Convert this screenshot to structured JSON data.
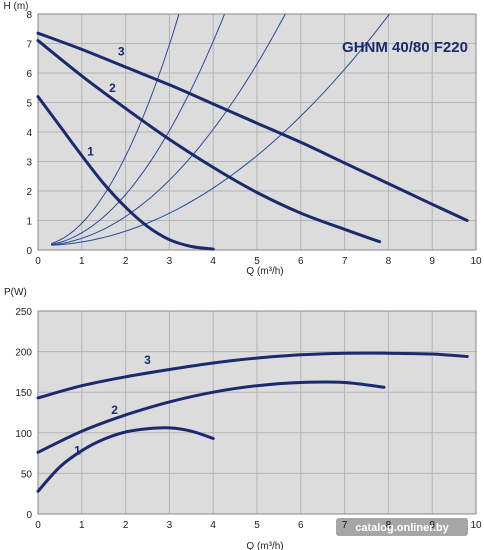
{
  "chart_data": [
    {
      "type": "line",
      "model_label": "GHNM 40/80 F220",
      "ylabel": "H (m)",
      "xlabel": "Q (m³/h)",
      "xlim": [
        0,
        10
      ],
      "ylim": [
        0,
        8
      ],
      "x_ticks": [
        "0",
        "1",
        "2",
        "3",
        "4",
        "5",
        "6",
        "7",
        "8",
        "9",
        "10"
      ],
      "y_ticks": [
        "0",
        "1",
        "2",
        "3",
        "4",
        "5",
        "6",
        "7",
        "8"
      ],
      "grid": true,
      "colors": {
        "series": "#1a2a6e",
        "system": "#2a4a9a",
        "plot_bg": "#dcdcdc",
        "grid": "#b4b4b4"
      },
      "series": [
        {
          "name": "1",
          "x": [
            0,
            0.5,
            1,
            1.5,
            2,
            2.5,
            3,
            3.5,
            4
          ],
          "y": [
            5.2,
            4.2,
            3.2,
            2.25,
            1.45,
            0.8,
            0.35,
            0.12,
            0.03
          ]
        },
        {
          "name": "2",
          "x": [
            0,
            1,
            2,
            3,
            4,
            5,
            6,
            7,
            7.8
          ],
          "y": [
            7.1,
            5.9,
            4.8,
            3.75,
            2.8,
            1.95,
            1.25,
            0.7,
            0.28
          ]
        },
        {
          "name": "3",
          "x": [
            0,
            1,
            2,
            3,
            4,
            5,
            6,
            7,
            8,
            9,
            9.8
          ],
          "y": [
            7.35,
            6.8,
            6.2,
            5.6,
            4.95,
            4.3,
            3.65,
            2.95,
            2.25,
            1.55,
            1.0
          ]
        }
      ],
      "system_curves": [
        {
          "k": 0.7,
          "x_end": 3.25
        },
        {
          "k": 0.7,
          "x_end": 4.3
        },
        {
          "k": 0.7,
          "x_end": 5.7
        },
        {
          "k": 0.7,
          "x_end": 8.1
        }
      ]
    },
    {
      "type": "line",
      "ylabel": "P(W)",
      "xlabel": "Q (m³/h)",
      "xlim": [
        0,
        10
      ],
      "ylim": [
        0,
        250
      ],
      "x_ticks": [
        "0",
        "1",
        "2",
        "3",
        "4",
        "5",
        "6",
        "7",
        "8",
        "9",
        "10"
      ],
      "y_ticks": [
        "0",
        "50",
        "100",
        "150",
        "200",
        "250"
      ],
      "grid": true,
      "series": [
        {
          "name": "1",
          "x": [
            0,
            0.5,
            1,
            1.5,
            2,
            2.5,
            3,
            3.5,
            4
          ],
          "y": [
            28,
            58,
            78,
            92,
            101,
            105,
            106,
            102,
            93
          ]
        },
        {
          "name": "2",
          "x": [
            0,
            1,
            2,
            3,
            4,
            5,
            6,
            7,
            7.9
          ],
          "y": [
            76,
            102,
            122,
            138,
            150,
            158,
            162,
            162,
            156
          ]
        },
        {
          "name": "3",
          "x": [
            0,
            1,
            2,
            3,
            4,
            5,
            6,
            7,
            8,
            9,
            9.8
          ],
          "y": [
            143,
            158,
            169,
            178,
            186,
            192,
            196,
            198,
            198,
            197,
            194
          ]
        }
      ]
    }
  ],
  "watermark": "catalog.onliner.by"
}
